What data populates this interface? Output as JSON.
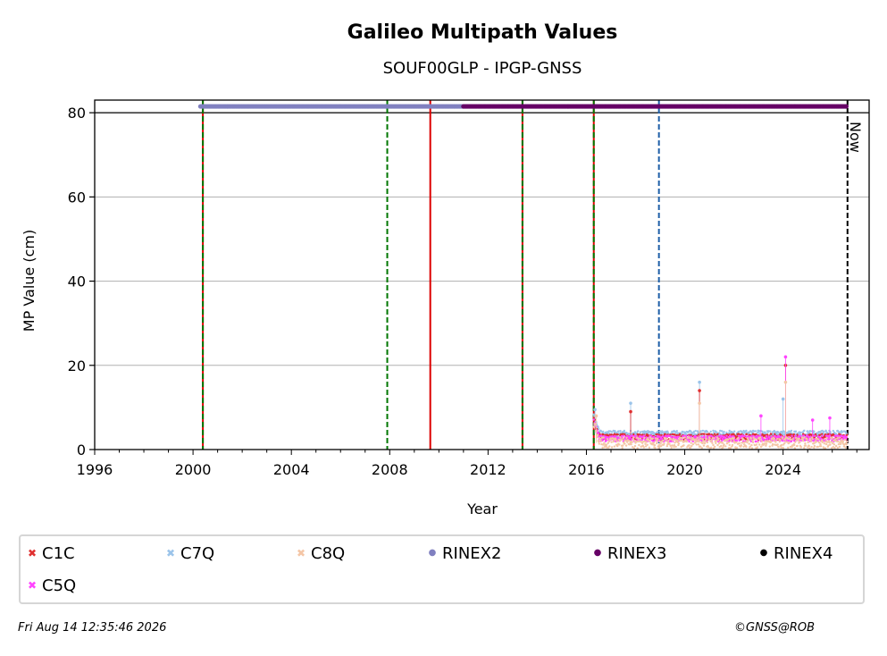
{
  "chart_data": {
    "type": "scatter",
    "title": "Galileo Multipath Values",
    "subtitle": "SOUF00GLP - IPGP-GNSS",
    "xlabel": "Year",
    "ylabel": "MP Value (cm)",
    "xlim": [
      1996,
      2027.5
    ],
    "ylim": [
      0,
      83
    ],
    "x_ticks": [
      "1996",
      "2000",
      "2004",
      "2008",
      "2012",
      "2016",
      "2020",
      "2024"
    ],
    "y_ticks": [
      "0",
      "20",
      "40",
      "60",
      "80"
    ],
    "grid": "horizontal",
    "now_label": "Now",
    "now_year": 2026.62,
    "event_lines": [
      {
        "year": 2000.4,
        "style": "solid",
        "color": "#dd0000"
      },
      {
        "year": 2000.4,
        "style": "dashed",
        "color": "#007700"
      },
      {
        "year": 2007.9,
        "style": "dashed",
        "color": "#007700"
      },
      {
        "year": 2009.65,
        "style": "solid",
        "color": "#dd0000"
      },
      {
        "year": 2013.4,
        "style": "solid",
        "color": "#dd0000"
      },
      {
        "year": 2013.4,
        "style": "dashed",
        "color": "#007700"
      },
      {
        "year": 2016.3,
        "style": "solid",
        "color": "#dd0000"
      },
      {
        "year": 2016.3,
        "style": "dashed",
        "color": "#007700"
      },
      {
        "year": 2018.95,
        "style": "dashed",
        "color": "#1f5fa8"
      }
    ],
    "rinex_bars": [
      {
        "name": "RINEX2",
        "color": "#8080c0",
        "from": 2000.3,
        "to": 2011.0,
        "y": 81.5
      },
      {
        "name": "RINEX3",
        "color": "#660066",
        "from": 2011.0,
        "to": 2026.6,
        "y": 81.5
      }
    ],
    "series": [
      {
        "name": "C1C",
        "marker": "x",
        "color": "#e03030",
        "from": 2016.3,
        "to": 2026.6,
        "baseline": 3.0,
        "spikes": [
          [
            2017.8,
            9
          ],
          [
            2020.6,
            14
          ],
          [
            2024.1,
            20
          ]
        ]
      },
      {
        "name": "C5Q",
        "marker": "x",
        "color": "#ff44ff",
        "from": 2016.3,
        "to": 2026.6,
        "baseline": 2.6,
        "spikes": [
          [
            2023.1,
            8
          ],
          [
            2024.1,
            22
          ],
          [
            2025.2,
            7
          ],
          [
            2025.9,
            7.5
          ]
        ]
      },
      {
        "name": "C7Q",
        "marker": "x",
        "color": "#9bc4ea",
        "from": 2016.3,
        "to": 2026.6,
        "baseline": 3.8,
        "spikes": [
          [
            2016.35,
            9.5
          ],
          [
            2017.8,
            11
          ],
          [
            2020.6,
            16
          ],
          [
            2024.0,
            12
          ]
        ]
      },
      {
        "name": "C8Q",
        "marker": "x",
        "color": "#f4c6a6",
        "from": 2016.3,
        "to": 2026.6,
        "baseline": 1.6,
        "spikes": [
          [
            2016.4,
            8
          ],
          [
            2020.6,
            11
          ],
          [
            2024.1,
            16
          ]
        ]
      }
    ],
    "legend": [
      {
        "label": "C1C",
        "color": "#e03030",
        "marker": "x"
      },
      {
        "label": "C7Q",
        "color": "#9bc4ea",
        "marker": "x"
      },
      {
        "label": "C8Q",
        "color": "#f4c6a6",
        "marker": "x"
      },
      {
        "label": "RINEX2",
        "color": "#8080c0",
        "marker": "dot"
      },
      {
        "label": "RINEX3",
        "color": "#660066",
        "marker": "dot"
      },
      {
        "label": "RINEX4",
        "color": "#000000",
        "marker": "dot"
      },
      {
        "label": "C5Q",
        "color": "#ff44ff",
        "marker": "x"
      }
    ]
  },
  "footer": {
    "timestamp": "Fri Aug 14 12:35:46 2026",
    "credit": "©GNSS@ROB"
  }
}
